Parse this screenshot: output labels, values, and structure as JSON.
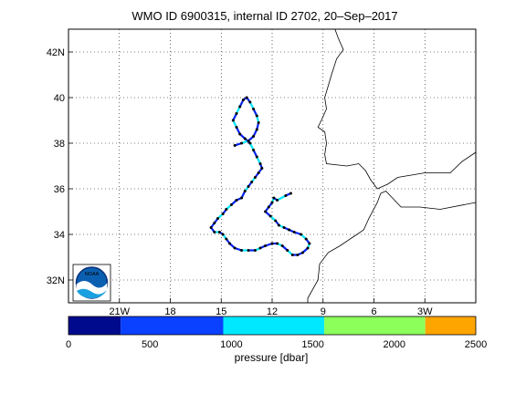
{
  "title": "WMO ID 6900315, internal ID 2702, 20–Sep–2017",
  "map": {
    "lon_range": [
      -24,
      0
    ],
    "lat_range": [
      31,
      43
    ],
    "grid": "dotted",
    "lat_ticks": [
      {
        "value": 32,
        "label": "32N"
      },
      {
        "value": 34,
        "label": "34"
      },
      {
        "value": 36,
        "label": "36"
      },
      {
        "value": 38,
        "label": "38"
      },
      {
        "value": 40,
        "label": "40"
      },
      {
        "value": 42,
        "label": "42N"
      }
    ],
    "lon_ticks": [
      {
        "value": -21,
        "label": "21W"
      },
      {
        "value": -18,
        "label": "18"
      },
      {
        "value": -15,
        "label": "15"
      },
      {
        "value": -12,
        "label": "12"
      },
      {
        "value": -9,
        "label": "9"
      },
      {
        "value": -6,
        "label": "6"
      },
      {
        "value": -3,
        "label": "3W"
      }
    ],
    "coastlines": [
      [
        [
          -8.3,
          43.0
        ],
        [
          -8.1,
          42.6
        ],
        [
          -7.8,
          42.1
        ],
        [
          -8.2,
          41.7
        ],
        [
          -8.5,
          41.0
        ],
        [
          -8.9,
          40.0
        ],
        [
          -8.8,
          39.5
        ],
        [
          -9.1,
          39.0
        ],
        [
          -9.3,
          38.7
        ],
        [
          -8.9,
          38.5
        ],
        [
          -8.8,
          38.0
        ],
        [
          -8.9,
          37.5
        ],
        [
          -8.8,
          37.1
        ],
        [
          -7.6,
          37.0
        ],
        [
          -6.9,
          37.1
        ],
        [
          -6.5,
          36.8
        ],
        [
          -6.2,
          36.4
        ],
        [
          -5.8,
          36.0
        ],
        [
          -5.2,
          36.2
        ],
        [
          -4.6,
          36.5
        ],
        [
          -3.0,
          36.7
        ],
        [
          -1.5,
          36.7
        ],
        [
          -0.8,
          37.2
        ],
        [
          0.0,
          37.6
        ]
      ],
      [
        [
          -5.6,
          35.8
        ],
        [
          -5.3,
          35.9
        ],
        [
          -4.4,
          35.2
        ],
        [
          -3.3,
          35.2
        ],
        [
          -2.1,
          35.1
        ],
        [
          0.0,
          35.4
        ]
      ],
      [
        [
          -5.6,
          35.8
        ],
        [
          -5.8,
          35.4
        ],
        [
          -6.3,
          34.7
        ],
        [
          -6.6,
          34.2
        ],
        [
          -7.2,
          33.9
        ],
        [
          -8.0,
          33.5
        ],
        [
          -8.7,
          33.2
        ],
        [
          -9.2,
          32.7
        ],
        [
          -9.3,
          32.0
        ],
        [
          -9.9,
          31.2
        ],
        [
          -9.9,
          31.0
        ]
      ]
    ],
    "trajectory": [
      [
        -10.9,
        35.8
      ],
      [
        -11.2,
        35.7
      ],
      [
        -11.7,
        35.5
      ],
      [
        -11.9,
        35.6
      ],
      [
        -12.0,
        35.4
      ],
      [
        -12.2,
        35.2
      ],
      [
        -12.4,
        35.0
      ],
      [
        -12.1,
        34.8
      ],
      [
        -11.8,
        34.6
      ],
      [
        -11.6,
        34.4
      ],
      [
        -11.3,
        34.3
      ],
      [
        -11.0,
        34.2
      ],
      [
        -10.7,
        34.1
      ],
      [
        -10.3,
        34.0
      ],
      [
        -10.0,
        33.8
      ],
      [
        -9.8,
        33.6
      ],
      [
        -9.9,
        33.4
      ],
      [
        -10.2,
        33.2
      ],
      [
        -10.5,
        33.1
      ],
      [
        -10.8,
        33.1
      ],
      [
        -11.1,
        33.3
      ],
      [
        -11.4,
        33.5
      ],
      [
        -11.7,
        33.6
      ],
      [
        -12.0,
        33.6
      ],
      [
        -12.4,
        33.5
      ],
      [
        -12.7,
        33.4
      ],
      [
        -13.0,
        33.3
      ],
      [
        -13.4,
        33.3
      ],
      [
        -13.8,
        33.3
      ],
      [
        -14.2,
        33.4
      ],
      [
        -14.5,
        33.6
      ],
      [
        -14.7,
        33.8
      ],
      [
        -14.9,
        34.0
      ],
      [
        -15.1,
        34.1
      ],
      [
        -15.4,
        34.1
      ],
      [
        -15.6,
        34.3
      ],
      [
        -15.4,
        34.5
      ],
      [
        -15.2,
        34.7
      ],
      [
        -14.9,
        34.9
      ],
      [
        -14.7,
        35.1
      ],
      [
        -14.4,
        35.3
      ],
      [
        -14.1,
        35.5
      ],
      [
        -13.8,
        35.6
      ],
      [
        -13.6,
        35.9
      ],
      [
        -13.4,
        36.1
      ],
      [
        -13.2,
        36.3
      ],
      [
        -13.0,
        36.5
      ],
      [
        -12.8,
        36.7
      ],
      [
        -12.6,
        36.9
      ],
      [
        -12.7,
        37.1
      ],
      [
        -12.9,
        37.4
      ],
      [
        -13.1,
        37.7
      ],
      [
        -13.3,
        38.0
      ],
      [
        -13.6,
        38.2
      ],
      [
        -13.9,
        38.4
      ],
      [
        -14.1,
        38.7
      ],
      [
        -14.3,
        39.0
      ],
      [
        -14.1,
        39.3
      ],
      [
        -13.9,
        39.6
      ],
      [
        -13.7,
        39.9
      ],
      [
        -13.5,
        40.0
      ],
      [
        -13.3,
        39.8
      ],
      [
        -13.1,
        39.5
      ],
      [
        -12.9,
        39.2
      ],
      [
        -12.8,
        38.9
      ],
      [
        -12.9,
        38.6
      ],
      [
        -13.1,
        38.3
      ],
      [
        -13.4,
        38.1
      ],
      [
        -13.8,
        38.0
      ],
      [
        -14.2,
        37.9
      ]
    ],
    "segment_colors": [
      "#0022ee",
      "#0022ee",
      "#00e8ff",
      "#0022ee",
      "#00e8ff",
      "#0022ee"
    ]
  },
  "colorbar": {
    "label": "pressure [dbar]",
    "min": 0,
    "max": 2500,
    "ticks": [
      "0",
      "500",
      "1000",
      "1500",
      "2000",
      "2500"
    ],
    "bands": [
      {
        "from": 0,
        "to": 320,
        "color": "#000a8c"
      },
      {
        "from": 320,
        "to": 950,
        "color": "#0a40ff"
      },
      {
        "from": 950,
        "to": 1570,
        "color": "#00e8ff"
      },
      {
        "from": 1570,
        "to": 2190,
        "color": "#8cff5a"
      },
      {
        "from": 2190,
        "to": 2500,
        "color": "#ffa500"
      }
    ]
  },
  "logo": {
    "text": "NOAA"
  }
}
